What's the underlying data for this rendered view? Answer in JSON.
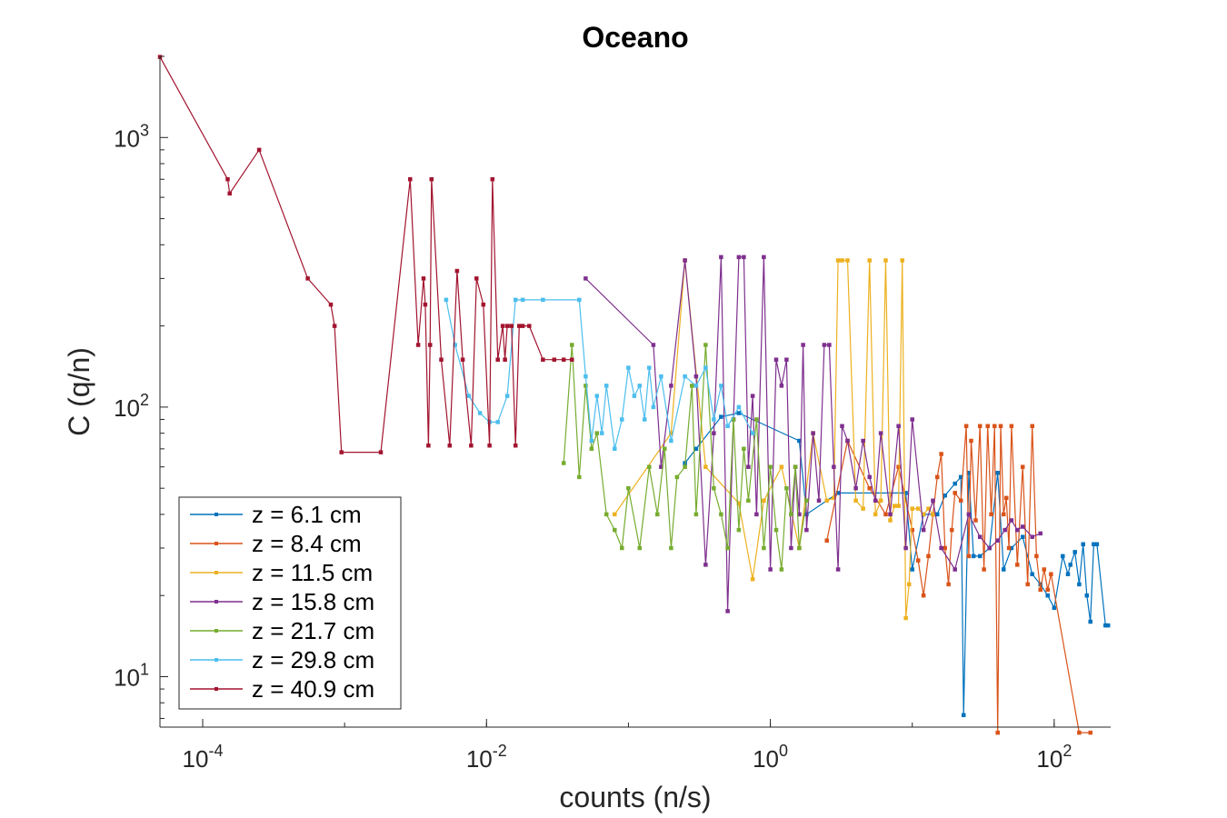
{
  "chart_data": {
    "type": "line",
    "title": "Oceano",
    "xlabel": "counts (n/s)",
    "ylabel": "C (q/n)",
    "xscale": "log",
    "yscale": "log",
    "xlim": [
      5e-05,
      250
    ],
    "ylim": [
      6.5,
      2000
    ],
    "grid": false,
    "legend_position": "bottom-left",
    "x_ticks": [
      {
        "value": 0.0001,
        "base": "10",
        "exp": "-4"
      },
      {
        "value": 0.01,
        "base": "10",
        "exp": "-2"
      },
      {
        "value": 1,
        "base": "10",
        "exp": "0"
      },
      {
        "value": 100,
        "base": "10",
        "exp": "2"
      }
    ],
    "y_ticks": [
      {
        "value": 10,
        "base": "10",
        "exp": "1"
      },
      {
        "value": 100,
        "base": "10",
        "exp": "2"
      },
      {
        "value": 1000,
        "base": "10",
        "exp": "3"
      }
    ],
    "series": [
      {
        "name": "z = 6.1 cm",
        "color": "#0072BD",
        "x": [
          0.25,
          0.3,
          0.45,
          0.6,
          1.6,
          1.8,
          3.0,
          9.0,
          10,
          12,
          15,
          17,
          20,
          22,
          23,
          25,
          27,
          30,
          35,
          40,
          44,
          50,
          60,
          70,
          80,
          90,
          100,
          115,
          125,
          130,
          140,
          150,
          160,
          170,
          180,
          190,
          200,
          230,
          240
        ],
        "y": [
          62,
          70,
          92,
          95,
          75,
          40,
          48,
          48,
          25,
          40,
          40,
          47,
          52,
          55,
          7.2,
          57,
          28,
          28,
          30,
          57,
          25,
          30,
          33,
          24,
          22,
          20,
          18,
          28,
          24,
          26,
          29,
          22,
          31,
          20,
          16,
          31,
          31,
          15.5,
          15.5
        ]
      },
      {
        "name": "z = 8.4 cm",
        "color": "#D95319",
        "x": [
          2.5,
          3.5,
          5.0,
          6.5,
          8.0,
          10,
          11,
          12,
          13,
          14,
          15,
          16,
          17,
          18,
          19,
          20,
          22,
          24,
          25,
          26,
          28,
          30,
          32,
          34,
          36,
          38,
          40,
          42,
          44,
          46,
          48,
          50,
          55,
          60,
          65,
          70,
          75,
          80,
          85,
          90,
          95,
          150,
          180
        ],
        "y": [
          32,
          75,
          50,
          40,
          60,
          35,
          27,
          20,
          28,
          40,
          55,
          67,
          30,
          22,
          35,
          48,
          45,
          85,
          28,
          75,
          38,
          85,
          25,
          85,
          40,
          85,
          6.2,
          85,
          40,
          46,
          30,
          85,
          26,
          60,
          22,
          85,
          28,
          21,
          25,
          21,
          24,
          6.2,
          6.2
        ]
      },
      {
        "name": "z = 11.5 cm",
        "color": "#EDB120",
        "x": [
          0.08,
          0.2,
          0.25,
          0.35,
          0.6,
          0.75,
          0.9,
          1.2,
          1.6,
          2.0,
          2.5,
          2.8,
          3.0,
          3.2,
          3.5,
          4.0,
          4.5,
          5.0,
          5.5,
          6.0,
          6.5,
          7.0,
          7.5,
          8.0,
          8.5,
          9.0,
          9.5,
          10,
          11,
          12,
          13,
          14
        ],
        "y": [
          40,
          80,
          350,
          60,
          44,
          23,
          45,
          60,
          30,
          80,
          45,
          46,
          350,
          350,
          350,
          45,
          42,
          350,
          40,
          45,
          350,
          38,
          43,
          43,
          350,
          16.5,
          22,
          42,
          42,
          40,
          42,
          40
        ]
      },
      {
        "name": "z = 15.8 cm",
        "color": "#7E2F8E",
        "x": [
          0.05,
          0.15,
          0.17,
          0.2,
          0.25,
          0.3,
          0.35,
          0.4,
          0.45,
          0.5,
          0.55,
          0.6,
          0.65,
          0.7,
          0.75,
          0.8,
          0.9,
          1.0,
          1.1,
          1.2,
          1.3,
          1.4,
          1.5,
          1.6,
          1.7,
          1.8,
          2.0,
          2.2,
          2.4,
          2.6,
          2.8,
          3.0,
          3.2,
          3.5,
          4.0,
          4.5,
          5.0,
          5.5,
          6.0,
          7.0,
          8.0,
          9.0,
          10,
          12,
          14,
          16,
          20,
          25,
          30,
          35,
          40,
          45,
          50,
          55,
          60,
          70,
          80
        ],
        "y": [
          300,
          170,
          60,
          120,
          350,
          130,
          26,
          80,
          360,
          17.5,
          90,
          360,
          360,
          60,
          110,
          40,
          360,
          25,
          150,
          120,
          150,
          30,
          60,
          40,
          170,
          35,
          80,
          45,
          170,
          170,
          60,
          25,
          85,
          75,
          50,
          75,
          55,
          45,
          80,
          40,
          85,
          30,
          90,
          35,
          45,
          30,
          25,
          40,
          33,
          30,
          32,
          35,
          38,
          35,
          36,
          33,
          34
        ]
      },
      {
        "name": "z = 21.7 cm",
        "color": "#77AC30",
        "x": [
          0.035,
          0.04,
          0.045,
          0.05,
          0.055,
          0.06,
          0.07,
          0.08,
          0.09,
          0.1,
          0.12,
          0.14,
          0.16,
          0.18,
          0.2,
          0.22,
          0.25,
          0.28,
          0.3,
          0.35,
          0.4,
          0.45,
          0.5,
          0.55,
          0.6,
          0.65,
          0.7,
          0.8,
          0.9,
          1.0,
          1.1,
          1.2,
          1.3,
          1.4,
          1.5,
          1.6,
          1.8
        ],
        "y": [
          62,
          170,
          55,
          120,
          70,
          80,
          40,
          35,
          30,
          50,
          30,
          60,
          40,
          70,
          30,
          55,
          60,
          120,
          40,
          170,
          50,
          40,
          30,
          90,
          35,
          70,
          45,
          90,
          30,
          60,
          35,
          25,
          50,
          40,
          60,
          30,
          45
        ]
      },
      {
        "name": "z = 29.8 cm",
        "color": "#4DBEEE",
        "x": [
          0.0052,
          0.006,
          0.0075,
          0.009,
          0.0105,
          0.012,
          0.014,
          0.016,
          0.018,
          0.025,
          0.045,
          0.05,
          0.055,
          0.06,
          0.065,
          0.07,
          0.08,
          0.09,
          0.1,
          0.11,
          0.12,
          0.13,
          0.14,
          0.15,
          0.17,
          0.2,
          0.25,
          0.3,
          0.35,
          0.4,
          0.45,
          0.5,
          0.6,
          0.75
        ],
        "y": [
          250,
          170,
          110,
          95,
          88,
          88,
          110,
          250,
          250,
          250,
          250,
          130,
          75,
          110,
          80,
          120,
          70,
          90,
          140,
          110,
          120,
          90,
          140,
          100,
          130,
          75,
          130,
          120,
          140,
          90,
          120,
          85,
          100,
          80
        ]
      },
      {
        "name": "z = 40.9 cm",
        "color": "#A2142F",
        "x": [
          5e-05,
          0.00015,
          0.000155,
          0.00025,
          0.00055,
          0.0008,
          0.00085,
          0.00095,
          0.0018,
          0.0029,
          0.0033,
          0.0036,
          0.0037,
          0.0039,
          0.004,
          0.0041,
          0.0048,
          0.0055,
          0.0062,
          0.0068,
          0.0078,
          0.0085,
          0.0095,
          0.0105,
          0.011,
          0.012,
          0.013,
          0.0135,
          0.014,
          0.015,
          0.016,
          0.017,
          0.018,
          0.02,
          0.025,
          0.03,
          0.035,
          0.04
        ],
        "y": [
          1990,
          700,
          620,
          900,
          300,
          240,
          200,
          68,
          68,
          700,
          170,
          300,
          240,
          72,
          170,
          700,
          150,
          72,
          320,
          150,
          72,
          300,
          240,
          72,
          700,
          150,
          200,
          150,
          200,
          200,
          72,
          200,
          200,
          200,
          150,
          150,
          150,
          150
        ]
      }
    ]
  }
}
